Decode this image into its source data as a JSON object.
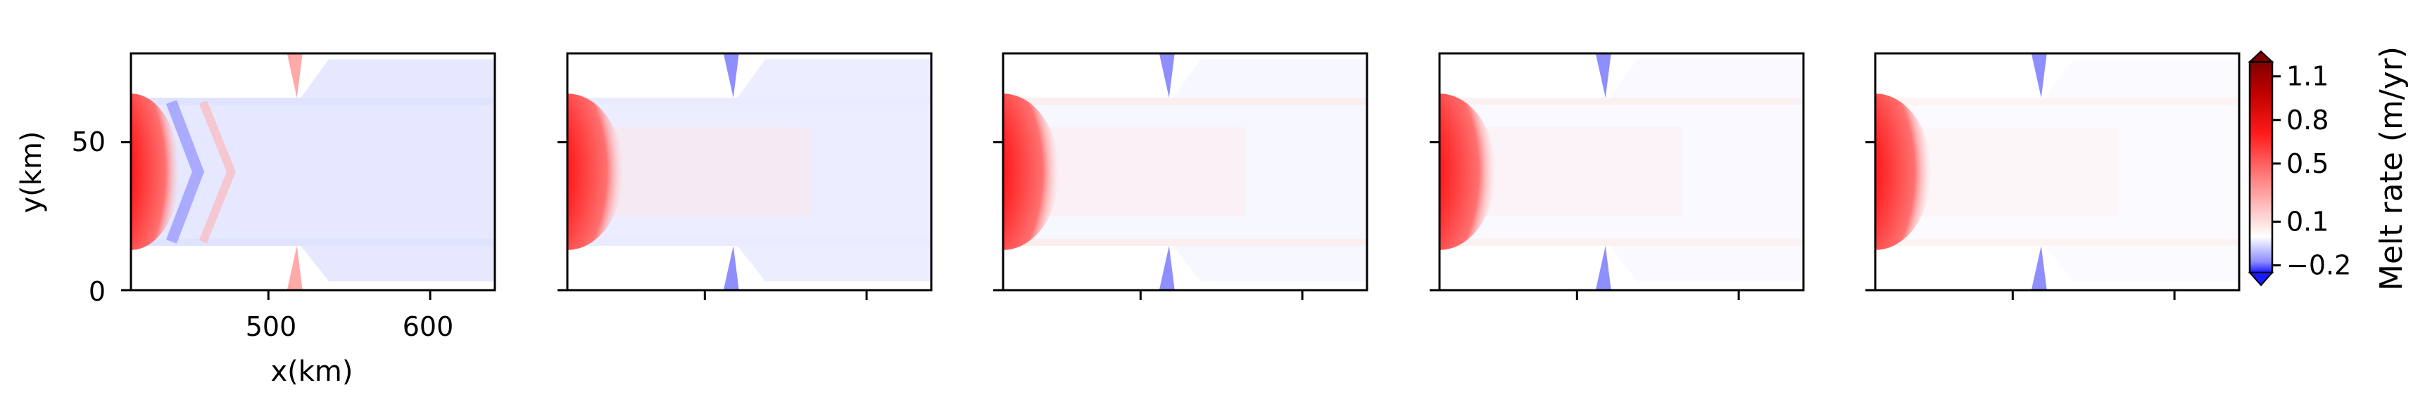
{
  "chart_data": {
    "type": "heatmap",
    "panels": [
      {
        "id": "panel-1"
      },
      {
        "id": "panel-2"
      },
      {
        "id": "panel-3"
      },
      {
        "id": "panel-4"
      },
      {
        "id": "panel-5"
      }
    ],
    "xlabel": "x(km)",
    "ylabel": "y(km)",
    "xlim": [
      415,
      640
    ],
    "ylim": [
      0,
      80
    ],
    "xticks": [
      500,
      600
    ],
    "yticks": [
      0,
      50
    ],
    "xtick_labels": [
      "500",
      "600"
    ],
    "ytick_labels": [
      "0",
      "50"
    ],
    "colorbar": {
      "label": "Melt rate (m/yr)",
      "ticks": [
        -0.2,
        0.1,
        0.5,
        0.8,
        1.1
      ],
      "tick_labels": [
        "−0.2",
        "0.1",
        "0.5",
        "0.8",
        "1.1"
      ],
      "range": [
        -0.25,
        1.2
      ],
      "extend": "both",
      "colormap": "bwr",
      "colors": {
        "negative": "#0000ff",
        "zero": "#ffffff",
        "positive": "#ff0000",
        "max": "#800000"
      }
    }
  }
}
